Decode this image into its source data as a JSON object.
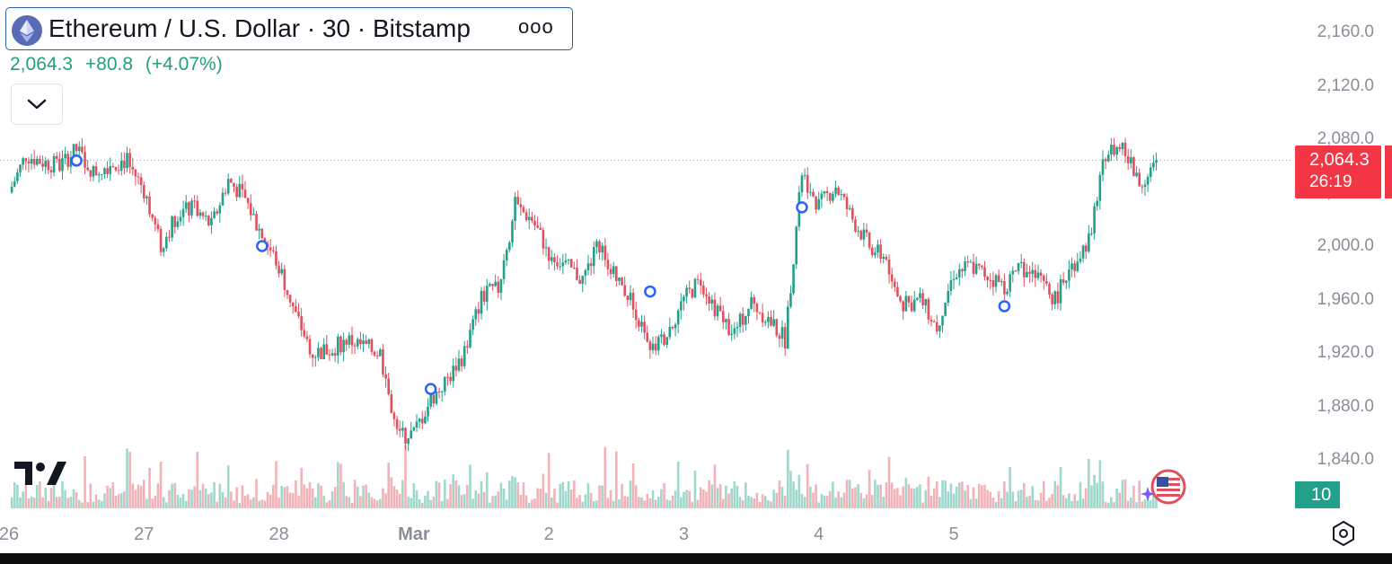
{
  "header": {
    "title": "Ethereum / U.S. Dollar · 30 · Bitstamp",
    "more_icon": "ooo"
  },
  "price_info": {
    "last": "2,064.3",
    "change": "+80.8",
    "change_pct": "(+4.07%)"
  },
  "price_tag": {
    "price": "2,064.3",
    "countdown": "26:19",
    "color": "#f23645"
  },
  "volume_tag": {
    "value": "10",
    "color": "#22a08a"
  },
  "colors": {
    "up": "#22a08a",
    "down": "#e0505e",
    "up_volume": "#9fd8cc",
    "down_volume": "#f1b3b7",
    "axis_text": "#8a8e99"
  },
  "chart_data": {
    "type": "candlestick",
    "symbol": "Ethereum / U.S. Dollar",
    "interval": "30",
    "exchange": "Bitstamp",
    "y_axis": {
      "ticks": [
        "1,840.0",
        "1,880.0",
        "1,920.0",
        "1,960.0",
        "2,000.0",
        "2,040.0",
        "2,080.0",
        "2,120.0",
        "2,160.0"
      ],
      "range": [
        1817,
        2175
      ]
    },
    "x_axis": {
      "labels": [
        "26",
        "27",
        "28",
        "Mar",
        "2",
        "3",
        "4",
        "5"
      ]
    },
    "last_price": 2064.3,
    "series_close_approx": [
      {
        "x": "Feb 26 00:00",
        "y": 2040
      },
      {
        "x": "Feb 26 03:00",
        "y": 2068
      },
      {
        "x": "Feb 26 06:00",
        "y": 2063
      },
      {
        "x": "Feb 26 09:00",
        "y": 2060
      },
      {
        "x": "Feb 26 12:00",
        "y": 2072
      },
      {
        "x": "Feb 26 15:00",
        "y": 2055
      },
      {
        "x": "Feb 26 18:00",
        "y": 2062
      },
      {
        "x": "Feb 26 21:00",
        "y": 2064
      },
      {
        "x": "Feb 27 00:00",
        "y": 2042
      },
      {
        "x": "Feb 27 03:00",
        "y": 2000
      },
      {
        "x": "Feb 27 06:00",
        "y": 2025
      },
      {
        "x": "Feb 27 09:00",
        "y": 2028
      },
      {
        "x": "Feb 27 12:00",
        "y": 2015
      },
      {
        "x": "Feb 27 15:00",
        "y": 2050
      },
      {
        "x": "Feb 27 18:00",
        "y": 2035
      },
      {
        "x": "Feb 27 21:00",
        "y": 2008
      },
      {
        "x": "Feb 28 00:00",
        "y": 1985
      },
      {
        "x": "Feb 28 03:00",
        "y": 1948
      },
      {
        "x": "Feb 28 06:00",
        "y": 1920
      },
      {
        "x": "Feb 28 09:00",
        "y": 1922
      },
      {
        "x": "Feb 28 12:00",
        "y": 1930
      },
      {
        "x": "Feb 28 15:00",
        "y": 1925
      },
      {
        "x": "Feb 28 18:00",
        "y": 1920
      },
      {
        "x": "Feb 28 21:00",
        "y": 1858
      },
      {
        "x": "Mar 1 00:00",
        "y": 1860
      },
      {
        "x": "Mar 1 03:00",
        "y": 1885
      },
      {
        "x": "Mar 1 06:00",
        "y": 1900
      },
      {
        "x": "Mar 1 09:00",
        "y": 1920
      },
      {
        "x": "Mar 1 12:00",
        "y": 1962
      },
      {
        "x": "Mar 1 15:00",
        "y": 1968
      },
      {
        "x": "Mar 1 18:00",
        "y": 2030
      },
      {
        "x": "Mar 1 21:00",
        "y": 2020
      },
      {
        "x": "Mar 2 00:00",
        "y": 1995
      },
      {
        "x": "Mar 2 03:00",
        "y": 1985
      },
      {
        "x": "Mar 2 06:00",
        "y": 1975
      },
      {
        "x": "Mar 2 09:00",
        "y": 2002
      },
      {
        "x": "Mar 2 12:00",
        "y": 1975
      },
      {
        "x": "Mar 2 15:00",
        "y": 1958
      },
      {
        "x": "Mar 2 18:00",
        "y": 1918
      },
      {
        "x": "Mar 2 21:00",
        "y": 1935
      },
      {
        "x": "Mar 3 00:00",
        "y": 1960
      },
      {
        "x": "Mar 3 03:00",
        "y": 1975
      },
      {
        "x": "Mar 3 06:00",
        "y": 1950
      },
      {
        "x": "Mar 3 09:00",
        "y": 1935
      },
      {
        "x": "Mar 3 12:00",
        "y": 1958
      },
      {
        "x": "Mar 3 15:00",
        "y": 1945
      },
      {
        "x": "Mar 3 18:00",
        "y": 1930
      },
      {
        "x": "Mar 3 21:00",
        "y": 2055
      },
      {
        "x": "Mar 4 00:00",
        "y": 2030
      },
      {
        "x": "Mar 4 03:00",
        "y": 2045
      },
      {
        "x": "Mar 4 06:00",
        "y": 2020
      },
      {
        "x": "Mar 4 09:00",
        "y": 2000
      },
      {
        "x": "Mar 4 12:00",
        "y": 1990
      },
      {
        "x": "Mar 4 15:00",
        "y": 1955
      },
      {
        "x": "Mar 4 18:00",
        "y": 1960
      },
      {
        "x": "Mar 4 21:00",
        "y": 1940
      },
      {
        "x": "Mar 5 00:00",
        "y": 1980
      },
      {
        "x": "Mar 5 03:00",
        "y": 1985
      },
      {
        "x": "Mar 5 06:00",
        "y": 1978
      },
      {
        "x": "Mar 5 09:00",
        "y": 1970
      },
      {
        "x": "Mar 5 12:00",
        "y": 1985
      },
      {
        "x": "Mar 5 15:00",
        "y": 1975
      },
      {
        "x": "Mar 5 18:00",
        "y": 1960
      },
      {
        "x": "Mar 5 21:00",
        "y": 1985
      },
      {
        "x": "Mar 6 00:00",
        "y": 2005
      },
      {
        "x": "Mar 6 03:00",
        "y": 2070
      },
      {
        "x": "Mar 6 06:00",
        "y": 2075
      },
      {
        "x": "Mar 6 09:00",
        "y": 2045
      },
      {
        "x": "Mar 6 12:00",
        "y": 2064.3
      }
    ],
    "event_markers": [
      {
        "x": "Feb 26 12:00",
        "y": 2064
      },
      {
        "x": "Feb 27 21:00",
        "y": 2000
      },
      {
        "x": "Mar 1 03:00",
        "y": 1893
      },
      {
        "x": "Mar 2 18:00",
        "y": 1966
      },
      {
        "x": "Mar 3 21:00",
        "y": 2029
      },
      {
        "x": "Mar 5 09:00",
        "y": 1955
      }
    ]
  }
}
